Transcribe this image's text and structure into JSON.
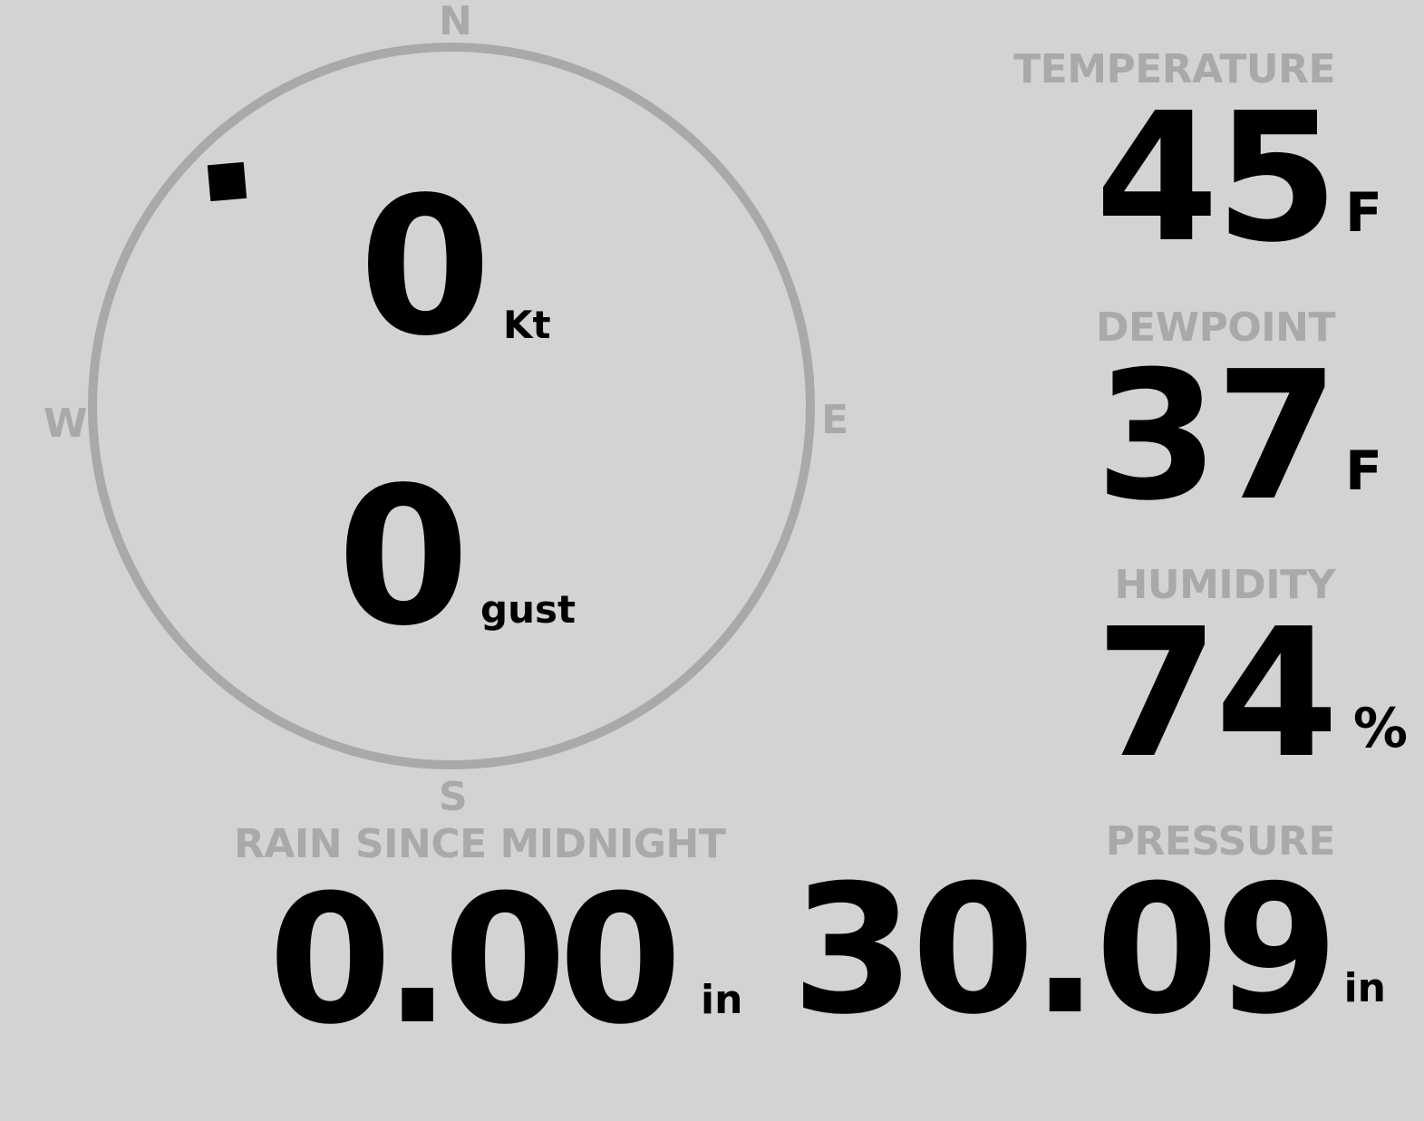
{
  "compass": {
    "north": "N",
    "south": "S",
    "east": "E",
    "west": "W",
    "wind_direction_deg": 315,
    "ring_color": "#a9a9a9"
  },
  "wind": {
    "speed": "0",
    "speed_unit": "Kt",
    "gust": "0",
    "gust_unit": "gust"
  },
  "temperature": {
    "label": "TEMPERATURE",
    "value": "45",
    "unit": "F"
  },
  "dewpoint": {
    "label": "DEWPOINT",
    "value": "37",
    "unit": "F"
  },
  "humidity": {
    "label": "HUMIDITY",
    "value": "74",
    "unit": "%"
  },
  "rain": {
    "label": "RAIN SINCE MIDNIGHT",
    "value": "0.00",
    "unit": "in"
  },
  "pressure": {
    "label": "PRESSURE",
    "value": "30.09",
    "unit": "in"
  },
  "colors": {
    "background": "#d3d3d3",
    "label": "#a9a9a9",
    "value": "#000000"
  }
}
